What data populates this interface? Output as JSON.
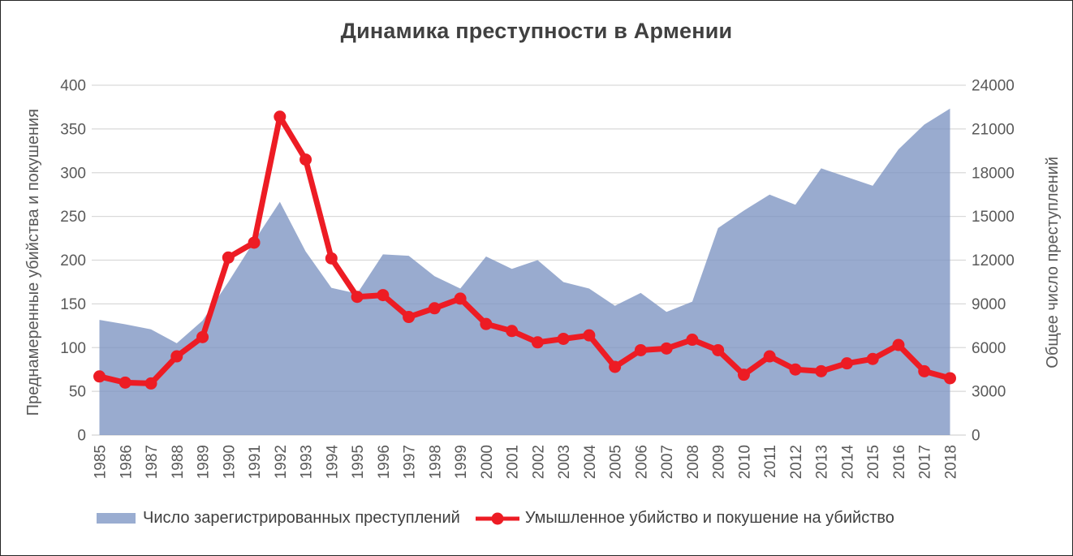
{
  "page": {
    "title": "Динамика преступности в Армении"
  },
  "chart_data": {
    "type": "combo",
    "title": "Динамика преступности в Армении",
    "x": [
      "1985",
      "1986",
      "1987",
      "1988",
      "1989",
      "1990",
      "1991",
      "1992",
      "1993",
      "1994",
      "1995",
      "1996",
      "1997",
      "1998",
      "1999",
      "2000",
      "2001",
      "2002",
      "2003",
      "2004",
      "2005",
      "2006",
      "2007",
      "2008",
      "2009",
      "2010",
      "2011",
      "2012",
      "2013",
      "2014",
      "2015",
      "2016",
      "2017",
      "2018"
    ],
    "series": [
      {
        "name": "Число зарегистрированных преступлений",
        "type": "area",
        "axis": "right",
        "color": "rgba(124,148,194,0.78)",
        "legend_swatch_color": "#9AADD1",
        "values": [
          7900,
          7600,
          7250,
          6300,
          7850,
          10500,
          13300,
          16000,
          12600,
          10100,
          9700,
          12400,
          12300,
          10900,
          10050,
          12250,
          11400,
          12000,
          10500,
          10050,
          8870,
          9750,
          8450,
          9150,
          14200,
          15400,
          16500,
          15800,
          18300,
          17700,
          17100,
          19600,
          21300,
          22400
        ]
      },
      {
        "name": "Умышленное убийство и покушение на убийство",
        "type": "line",
        "axis": "left",
        "color": "#ED1C24",
        "values": [
          67,
          60,
          59,
          90,
          112,
          203,
          220,
          364,
          315,
          202,
          158,
          160,
          135,
          145,
          156,
          127,
          119,
          106,
          110,
          114,
          78,
          97,
          99,
          109,
          97,
          69,
          90,
          75,
          73,
          82,
          87,
          103,
          73,
          65
        ]
      }
    ],
    "left_axis": {
      "title": "Преднамеренные убийства и покушения",
      "min": 0,
      "max": 400,
      "step": 50,
      "ticks": [
        0,
        50,
        100,
        150,
        200,
        250,
        300,
        350,
        400
      ]
    },
    "right_axis": {
      "title": "Общее число преступлений",
      "min": 0,
      "max": 24000,
      "step": 3000,
      "ticks": [
        0,
        3000,
        6000,
        9000,
        12000,
        15000,
        18000,
        21000,
        24000
      ]
    },
    "grid": true,
    "legend_position": "bottom",
    "colors": {
      "gridline": "#D9D9D9",
      "tick_label": "#595959",
      "title_text": "#404040",
      "legend_text": "#404040"
    }
  }
}
